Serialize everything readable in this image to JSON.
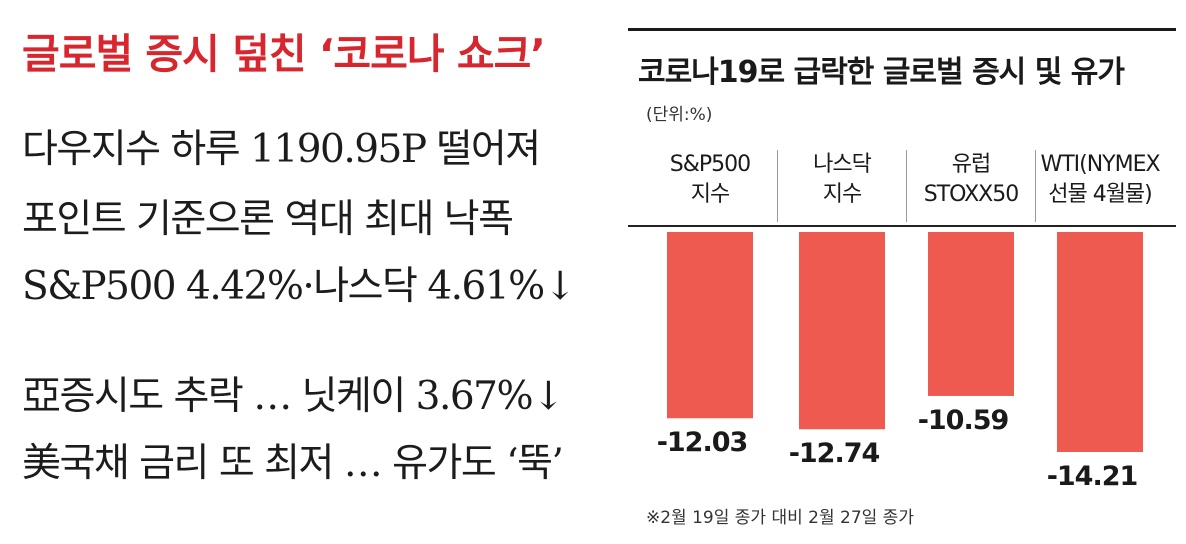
{
  "left": {
    "headline": "글로벌 증시 덮친 ‘코로나 쇼크’",
    "lines": [
      "다우지수 하루 1190.95P 떨어져",
      "포인트 기준으론 역대 최대 낙폭",
      "S&P500 4.42%·나스닥 4.61%↓",
      "亞증시도 추락 … 닛케이 3.67%↓",
      "美국채 금리 또 최저 … 유가도 ‘뚝’"
    ]
  },
  "chart_data": {
    "type": "bar",
    "title": "코로나19로 급락한 글로벌 증시 및 유가",
    "unit": "(단위:%)",
    "categories": [
      [
        "S&P500",
        "지수"
      ],
      [
        "나스닥",
        "지수"
      ],
      [
        "유럽",
        "STOXX50"
      ],
      [
        "WTI(NYMEX",
        "선물 4월물)"
      ]
    ],
    "values": [
      -12.03,
      -12.74,
      -10.59,
      -14.21
    ],
    "value_labels": [
      "-12.03",
      "-12.74",
      "-10.59",
      "-14.21"
    ],
    "ylim": [
      -14.21,
      0
    ],
    "bar_color": "#ef5a50",
    "footnote": "※2월 19일 종가 대비 2월 27일 종가"
  }
}
